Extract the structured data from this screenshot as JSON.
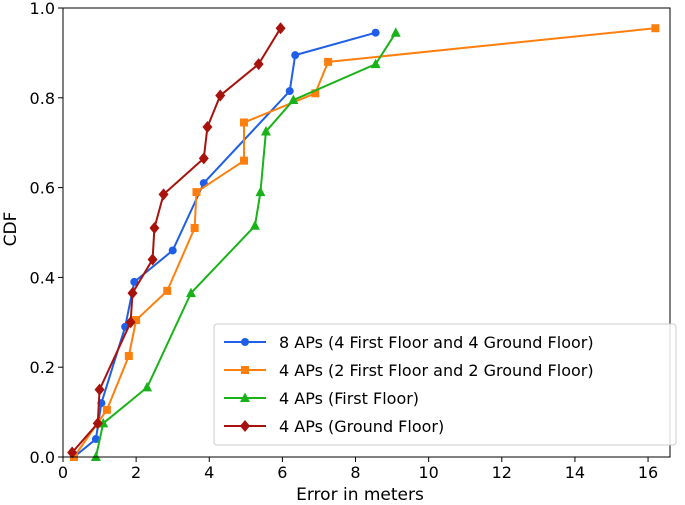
{
  "chart_data": {
    "type": "line",
    "xlabel": "Error in meters",
    "ylabel": "CDF",
    "xlim": [
      0,
      16.6
    ],
    "ylim": [
      0,
      1.0
    ],
    "xticks": [
      "0",
      "2",
      "4",
      "6",
      "8",
      "10",
      "12",
      "14",
      "16"
    ],
    "yticks": [
      "0.0",
      "0.2",
      "0.4",
      "0.6",
      "0.8",
      "1.0"
    ],
    "grid": false,
    "legend_position": "lower-right",
    "series": [
      {
        "name": "8 APs (4 First Floor and 4 Ground Floor)",
        "color": "#1f5ee8",
        "marker": "circle",
        "x": [
          0.3,
          0.9,
          1.05,
          1.7,
          1.95,
          3.0,
          3.85,
          6.2,
          6.35,
          8.55
        ],
        "y": [
          0.0,
          0.04,
          0.12,
          0.29,
          0.39,
          0.46,
          0.61,
          0.815,
          0.895,
          0.945
        ]
      },
      {
        "name": "4 APs (2 First Floor and 2 Ground Floor)",
        "color": "#ff7f0e",
        "marker": "square",
        "x": [
          0.3,
          1.2,
          1.8,
          2.0,
          2.85,
          3.6,
          3.65,
          4.95,
          4.95,
          6.9,
          7.25,
          16.2
        ],
        "y": [
          0.0,
          0.105,
          0.225,
          0.305,
          0.37,
          0.51,
          0.59,
          0.66,
          0.745,
          0.81,
          0.88,
          0.955
        ]
      },
      {
        "name": "4 APs (First Floor)",
        "color": "#19b319",
        "marker": "triangle",
        "x": [
          0.9,
          1.1,
          2.3,
          3.5,
          5.25,
          5.4,
          5.55,
          6.3,
          8.55,
          9.1
        ],
        "y": [
          0.0,
          0.075,
          0.155,
          0.365,
          0.515,
          0.59,
          0.725,
          0.795,
          0.875,
          0.945
        ]
      },
      {
        "name": "4 APs (Ground Floor)",
        "color": "#a8120c",
        "marker": "diamond",
        "x": [
          0.25,
          0.95,
          1.0,
          1.85,
          1.9,
          2.45,
          2.5,
          2.75,
          3.85,
          3.95,
          4.3,
          5.35,
          5.95
        ],
        "y": [
          0.01,
          0.075,
          0.15,
          0.3,
          0.365,
          0.44,
          0.51,
          0.585,
          0.665,
          0.735,
          0.805,
          0.875,
          0.955
        ]
      }
    ]
  }
}
